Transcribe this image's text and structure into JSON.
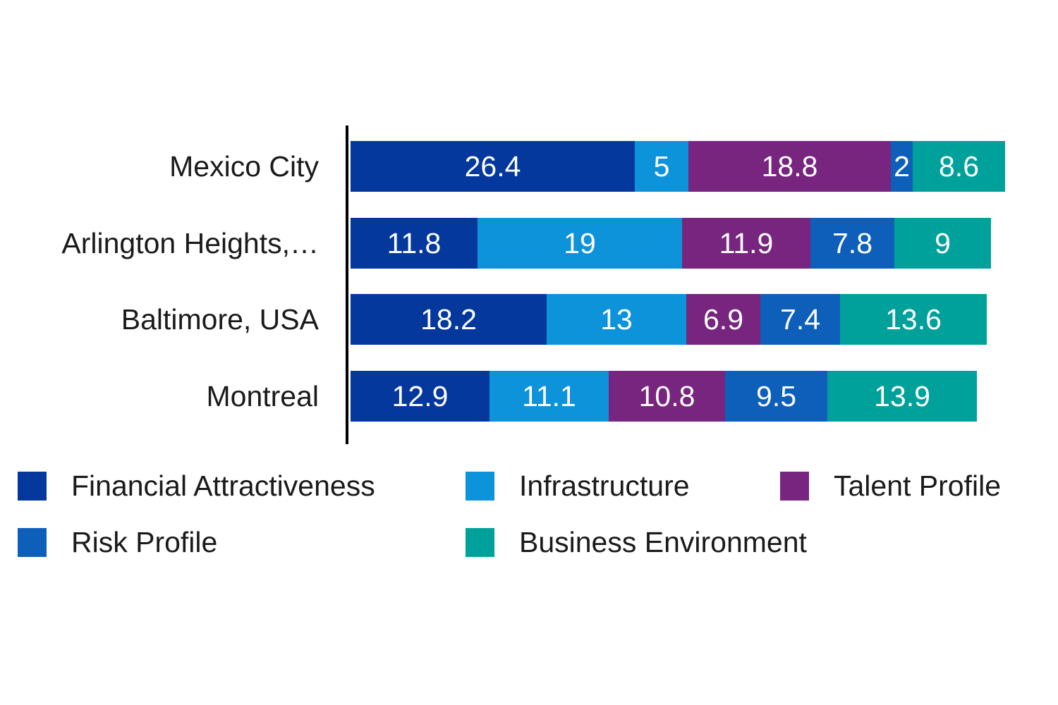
{
  "chart_data": {
    "type": "bar",
    "orientation": "horizontal",
    "stacked": true,
    "title": "",
    "xlabel": "",
    "ylabel": "",
    "grid": false,
    "legend_position": "bottom",
    "axis_color": "#000000",
    "background_color": "#ffffff",
    "categories": [
      "Mexico City",
      "Arlington Heights,…",
      "Baltimore, USA",
      "Montreal"
    ],
    "series": [
      {
        "name": "Financial Attractiveness",
        "color": "#05389d",
        "values": [
          26.4,
          11.8,
          18.2,
          12.9
        ]
      },
      {
        "name": "Infrastructure",
        "color": "#0d93d9",
        "values": [
          5,
          19,
          13,
          11.1
        ]
      },
      {
        "name": "Talent Profile",
        "color": "#77257f",
        "values": [
          18.8,
          11.9,
          6.9,
          10.8
        ]
      },
      {
        "name": "Risk Profile",
        "color": "#0e5fba",
        "values": [
          2,
          7.8,
          7.4,
          9.5
        ]
      },
      {
        "name": "Business Environment",
        "color": "#00a19b",
        "values": [
          8.6,
          9,
          13.6,
          13.9
        ]
      }
    ],
    "value_labels": [
      [
        "26.4",
        "5",
        "18.8",
        "2",
        "8.6"
      ],
      [
        "11.8",
        "19",
        "11.9",
        "7.8",
        "9"
      ],
      [
        "18.2",
        "13",
        "6.9",
        "7.4",
        "13.6"
      ],
      [
        "12.9",
        "11.1",
        "10.8",
        "9.5",
        "13.9"
      ]
    ],
    "value_label_color": "#ffffff",
    "category_label_color": "#1a1a1a",
    "legend_rows": [
      [
        "Financial Attractiveness",
        "Infrastructure",
        "Talent Profile"
      ],
      [
        "Risk Profile",
        "Business Environment"
      ]
    ]
  }
}
